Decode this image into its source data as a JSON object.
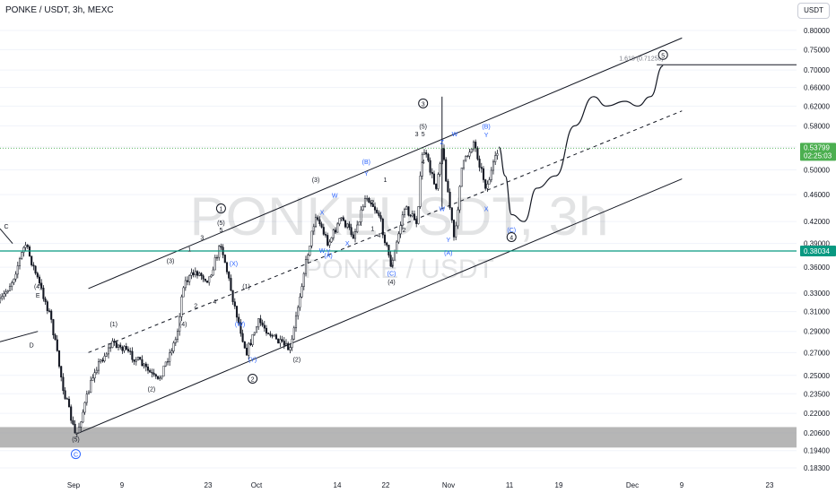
{
  "header": {
    "title": "PONKE / USDT, 3h, MEXC",
    "currency_label": "USDT"
  },
  "watermark": {
    "symbol": "PONKEUSDT, 3h",
    "pair": "PONKE / USDT"
  },
  "price_badges": {
    "last_price": "0.53799",
    "countdown": "02:25:03",
    "level_price": "0.38034"
  },
  "colors": {
    "last_price": "#4caf50",
    "level_line": "#089981",
    "wave_blue": "#2962ff",
    "wave_black": "#131722",
    "support_zone": "#9e9e9e"
  },
  "chart_data": {
    "type": "candlestick",
    "symbol": "PONKE/USDT",
    "interval": "3h",
    "exchange": "MEXC",
    "y_scale": "log",
    "ylim": [
      0.18,
      0.85
    ],
    "y_ticks": [
      "0.80000",
      "0.75000",
      "0.70000",
      "0.66000",
      "0.62000",
      "0.58000",
      "0.54000",
      "0.50000",
      "0.46000",
      "0.42000",
      "0.39000",
      "0.36000",
      "0.33000",
      "0.31000",
      "0.29000",
      "0.27000",
      "0.25000",
      "0.23500",
      "0.22000",
      "0.20600",
      "0.19400",
      "0.18300"
    ],
    "x_ticks": [
      "Sep",
      "9",
      "23",
      "Oct",
      "14",
      "22",
      "Nov",
      "11",
      "19",
      "Dec",
      "9",
      "23"
    ],
    "x_range": [
      "2024-08-26",
      "2024-12-29"
    ],
    "price_path": [
      {
        "date": "2024-08-26",
        "price": 0.32
      },
      {
        "date": "2024-08-28",
        "price": 0.345
      },
      {
        "date": "2024-08-30",
        "price": 0.39
      },
      {
        "date": "2024-09-01",
        "price": 0.345
      },
      {
        "date": "2024-09-03",
        "price": 0.305
      },
      {
        "date": "2024-09-05",
        "price": 0.24
      },
      {
        "date": "2024-09-07",
        "price": 0.203
      },
      {
        "date": "2024-09-10",
        "price": 0.255
      },
      {
        "date": "2024-09-13",
        "price": 0.28
      },
      {
        "date": "2024-09-17",
        "price": 0.262
      },
      {
        "date": "2024-09-20",
        "price": 0.245
      },
      {
        "date": "2024-09-23",
        "price": 0.285
      },
      {
        "date": "2024-09-24",
        "price": 0.34
      },
      {
        "date": "2024-09-26",
        "price": 0.355
      },
      {
        "date": "2024-09-28",
        "price": 0.345
      },
      {
        "date": "2024-09-30",
        "price": 0.39
      },
      {
        "date": "2024-10-02",
        "price": 0.32
      },
      {
        "date": "2024-10-04",
        "price": 0.27
      },
      {
        "date": "2024-10-06",
        "price": 0.3
      },
      {
        "date": "2024-10-09",
        "price": 0.28
      },
      {
        "date": "2024-10-11",
        "price": 0.272
      },
      {
        "date": "2024-10-13",
        "price": 0.35
      },
      {
        "date": "2024-10-15",
        "price": 0.43
      },
      {
        "date": "2024-10-17",
        "price": 0.39
      },
      {
        "date": "2024-10-19",
        "price": 0.425
      },
      {
        "date": "2024-10-21",
        "price": 0.4
      },
      {
        "date": "2024-10-23",
        "price": 0.46
      },
      {
        "date": "2024-10-25",
        "price": 0.43
      },
      {
        "date": "2024-10-27",
        "price": 0.36
      },
      {
        "date": "2024-10-29",
        "price": 0.44
      },
      {
        "date": "2024-10-31",
        "price": 0.42
      },
      {
        "date": "2024-11-01",
        "price": 0.54
      },
      {
        "date": "2024-11-03",
        "price": 0.47
      },
      {
        "date": "2024-11-04",
        "price": 0.54
      },
      {
        "date": "2024-11-06",
        "price": 0.39
      },
      {
        "date": "2024-11-07",
        "price": 0.5
      },
      {
        "date": "2024-11-09",
        "price": 0.55
      },
      {
        "date": "2024-11-11",
        "price": 0.47
      },
      {
        "date": "2024-11-13",
        "price": 0.5378
      }
    ],
    "projection_path": [
      {
        "date": "2024-11-13",
        "price": 0.54
      },
      {
        "date": "2024-11-14",
        "price": 0.49
      },
      {
        "date": "2024-11-15",
        "price": 0.43
      },
      {
        "date": "2024-11-17",
        "price": 0.42
      },
      {
        "date": "2024-11-19",
        "price": 0.47
      },
      {
        "date": "2024-11-22",
        "price": 0.49
      },
      {
        "date": "2024-11-25",
        "price": 0.58
      },
      {
        "date": "2024-11-28",
        "price": 0.64
      },
      {
        "date": "2024-11-30",
        "price": 0.62
      },
      {
        "date": "2024-12-03",
        "price": 0.63
      },
      {
        "date": "2024-12-05",
        "price": 0.62
      },
      {
        "date": "2024-12-07",
        "price": 0.64
      },
      {
        "date": "2024-12-09",
        "price": 0.71
      }
    ],
    "horizontal_levels": [
      {
        "price": 0.38034,
        "label": "0.38034"
      },
      {
        "price": 0.71258,
        "label": "1.618 (0.71258)"
      },
      {
        "price": 0.5379,
        "label": "0.53799"
      }
    ],
    "support_zone": [
      0.196,
      0.21
    ],
    "channel": {
      "upper": [
        {
          "date": "2024-09-09",
          "price": 0.335
        },
        {
          "date": "2024-12-12",
          "price": 0.78
        }
      ],
      "mid": [
        {
          "date": "2024-09-09",
          "price": 0.27
        },
        {
          "date": "2024-12-12",
          "price": 0.61
        }
      ],
      "lower": [
        {
          "date": "2024-09-07",
          "price": 0.205
        },
        {
          "date": "2024-12-12",
          "price": 0.485
        }
      ]
    },
    "wave_labels": [
      {
        "text": "C",
        "date": "2024-08-27",
        "price": 0.41,
        "color": "black"
      },
      {
        "text": "(4)",
        "date": "2024-09-01",
        "price": 0.335,
        "color": "black"
      },
      {
        "text": "E",
        "date": "2024-09-01",
        "price": 0.325,
        "color": "black"
      },
      {
        "text": "D",
        "date": "2024-08-31",
        "price": 0.275,
        "color": "black"
      },
      {
        "text": "(1)",
        "date": "2024-09-13",
        "price": 0.295,
        "color": "black"
      },
      {
        "text": "(2)",
        "date": "2024-09-19",
        "price": 0.237,
        "color": "black"
      },
      {
        "text": "(3)",
        "date": "2024-09-22",
        "price": 0.365,
        "color": "black"
      },
      {
        "text": "(4)",
        "date": "2024-09-24",
        "price": 0.295,
        "color": "black"
      },
      {
        "text": "1",
        "date": "2024-09-25",
        "price": 0.38,
        "color": "black"
      },
      {
        "text": "2",
        "date": "2024-09-26",
        "price": 0.314,
        "color": "black"
      },
      {
        "text": "3",
        "date": "2024-09-27",
        "price": 0.395,
        "color": "black"
      },
      {
        "text": "4",
        "date": "2024-09-29",
        "price": 0.318,
        "color": "black"
      },
      {
        "text": "(5)",
        "date": "2024-09-30",
        "price": 0.415,
        "color": "black"
      },
      {
        "text": "5",
        "date": "2024-09-30",
        "price": 0.405,
        "color": "black"
      },
      {
        "text": "1",
        "date": "2024-09-30",
        "price": 0.435,
        "color": "black",
        "circled": true
      },
      {
        "text": "(X)",
        "date": "2024-10-02",
        "price": 0.362,
        "color": "blue"
      },
      {
        "text": "(1)",
        "date": "2024-10-04",
        "price": 0.335,
        "color": "black"
      },
      {
        "text": "(W)",
        "date": "2024-10-03",
        "price": 0.295,
        "color": "blue"
      },
      {
        "text": "(Y)",
        "date": "2024-10-05",
        "price": 0.262,
        "color": "blue"
      },
      {
        "text": "2",
        "date": "2024-10-05",
        "price": 0.245,
        "color": "black",
        "circled": true
      },
      {
        "text": "(2)",
        "date": "2024-10-12",
        "price": 0.262,
        "color": "black"
      },
      {
        "text": "(3)",
        "date": "2024-10-15",
        "price": 0.48,
        "color": "black"
      },
      {
        "text": "X",
        "date": "2024-10-16",
        "price": 0.43,
        "color": "blue"
      },
      {
        "text": "W",
        "date": "2024-10-18",
        "price": 0.455,
        "color": "blue"
      },
      {
        "text": "(A)",
        "date": "2024-10-17",
        "price": 0.372,
        "color": "blue"
      },
      {
        "text": "Y",
        "date": "2024-10-17",
        "price": 0.377,
        "color": "blue"
      },
      {
        "text": "W",
        "date": "2024-10-16",
        "price": 0.378,
        "color": "blue"
      },
      {
        "text": "X",
        "date": "2024-10-20",
        "price": 0.387,
        "color": "blue"
      },
      {
        "text": "(B)",
        "date": "2024-10-23",
        "price": 0.51,
        "color": "blue"
      },
      {
        "text": "Y",
        "date": "2024-10-23",
        "price": 0.49,
        "color": "blue"
      },
      {
        "text": "2",
        "date": "2024-10-24",
        "price": 0.445,
        "color": "black"
      },
      {
        "text": "1",
        "date": "2024-10-24",
        "price": 0.407,
        "color": "black"
      },
      {
        "text": "4",
        "date": "2024-10-25",
        "price": 0.398,
        "color": "black"
      },
      {
        "text": "1",
        "date": "2024-10-26",
        "price": 0.48,
        "color": "black"
      },
      {
        "text": "5",
        "date": "2024-10-27",
        "price": 0.36,
        "color": "black"
      },
      {
        "text": "(C)",
        "date": "2024-10-27",
        "price": 0.35,
        "color": "blue"
      },
      {
        "text": "(4)",
        "date": "2024-10-27",
        "price": 0.34,
        "color": "black"
      },
      {
        "text": "2",
        "date": "2024-10-29",
        "price": 0.405,
        "color": "black"
      },
      {
        "text": "3",
        "date": "2024-10-31",
        "price": 0.56,
        "color": "black"
      },
      {
        "text": "(5)",
        "date": "2024-11-01",
        "price": 0.575,
        "color": "black"
      },
      {
        "text": "5",
        "date": "2024-11-01",
        "price": 0.56,
        "color": "black"
      },
      {
        "text": "3",
        "date": "2024-11-01",
        "price": 0.62,
        "color": "black",
        "circled": true
      },
      {
        "text": "4",
        "date": "2024-11-01",
        "price": 0.51,
        "color": "black"
      },
      {
        "text": "Z",
        "date": "2024-11-04",
        "price": 0.545,
        "color": "blue"
      },
      {
        "text": "W",
        "date": "2024-11-04",
        "price": 0.435,
        "color": "blue"
      },
      {
        "text": "W",
        "date": "2024-11-06",
        "price": 0.56,
        "color": "blue"
      },
      {
        "text": "Y",
        "date": "2024-11-05",
        "price": 0.392,
        "color": "blue"
      },
      {
        "text": "(A)",
        "date": "2024-11-05",
        "price": 0.375,
        "color": "blue"
      },
      {
        "text": "(B)",
        "date": "2024-11-11",
        "price": 0.575,
        "color": "blue"
      },
      {
        "text": "Y",
        "date": "2024-11-11",
        "price": 0.558,
        "color": "blue"
      },
      {
        "text": "X",
        "date": "2024-11-11",
        "price": 0.435,
        "color": "blue"
      },
      {
        "text": "(C)",
        "date": "2024-11-15",
        "price": 0.405,
        "color": "blue"
      },
      {
        "text": "4",
        "date": "2024-11-15",
        "price": 0.395,
        "color": "black",
        "circled": true
      },
      {
        "text": "5",
        "date": "2024-12-09",
        "price": 0.73,
        "color": "black",
        "circled": true
      },
      {
        "text": "(5)",
        "date": "2024-09-07",
        "price": 0.2,
        "color": "black"
      },
      {
        "text": "C",
        "date": "2024-09-07",
        "price": 0.19,
        "color": "blue",
        "circled": true
      }
    ],
    "candles_seed": 7,
    "candle_up_color": "#131722",
    "candle_down_color": "#131722"
  }
}
